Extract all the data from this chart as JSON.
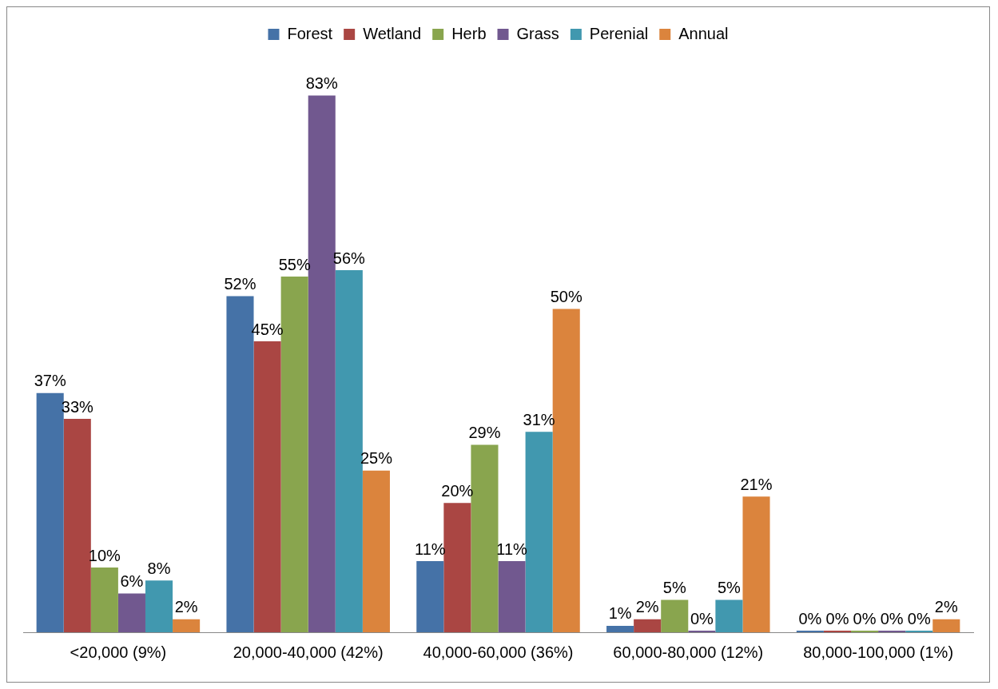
{
  "chart_data": {
    "type": "bar",
    "categories": [
      "<20,000 (9%)",
      "20,000-40,000 (42%)",
      "40,000-60,000 (36%)",
      "60,000-80,000 (12%)",
      "80,000-100,000 (1%)"
    ],
    "series": [
      {
        "name": "Forest",
        "color": "#4572a7",
        "values": [
          37,
          52,
          11,
          1,
          0
        ],
        "value_labels": [
          "37%",
          "52%",
          "11%",
          "1%",
          "0%"
        ]
      },
      {
        "name": "Wetland",
        "color": "#aa4643",
        "values": [
          33,
          45,
          20,
          2,
          0
        ],
        "value_labels": [
          "33%",
          "45%",
          "20%",
          "2%",
          "0%"
        ]
      },
      {
        "name": "Herb",
        "color": "#89a54e",
        "values": [
          10,
          55,
          29,
          5,
          0
        ],
        "value_labels": [
          "10%",
          "55%",
          "29%",
          "5%",
          "0%"
        ]
      },
      {
        "name": "Grass",
        "color": "#71588f",
        "values": [
          6,
          83,
          11,
          0,
          0
        ],
        "value_labels": [
          "6%",
          "83%",
          "11%",
          "0%",
          "0%"
        ]
      },
      {
        "name": "Perenial",
        "color": "#4198af",
        "values": [
          8,
          56,
          31,
          5,
          0
        ],
        "value_labels": [
          "8%",
          "56%",
          "31%",
          "5%",
          "0%"
        ]
      },
      {
        "name": "Annual",
        "color": "#db843d",
        "values": [
          2,
          25,
          50,
          21,
          2
        ],
        "value_labels": [
          "2%",
          "25%",
          "50%",
          "21%",
          "2%"
        ]
      }
    ],
    "legend": "top",
    "grid": false
  }
}
